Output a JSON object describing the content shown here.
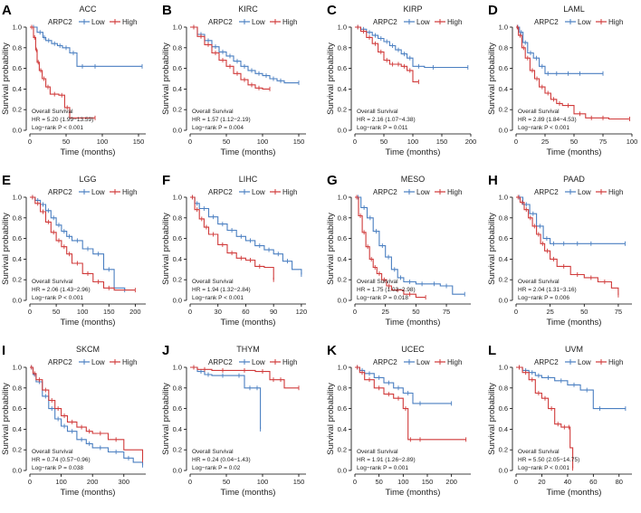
{
  "figure": {
    "ylabel": "Survival probability",
    "xlabel": "Time (months)",
    "legend_title": "ARPC2",
    "legend_low": "Low",
    "legend_high": "High",
    "stats_title": "Overall Survival",
    "low_color": "#4a7fc1",
    "high_color": "#d03a3a"
  },
  "chart_data": [
    {
      "type": "line",
      "letter": "A",
      "title": "ACC",
      "xlim": [
        0,
        160
      ],
      "xticks": [
        0,
        50,
        100,
        150
      ],
      "ylim": [
        0,
        1
      ],
      "yticks": [
        0,
        0.2,
        0.4,
        0.6,
        0.8,
        1.0
      ],
      "hr": "HR = 5.20 (1.99−13.59)",
      "pval": "Log−rank P < 0.001",
      "series": [
        {
          "name": "Low",
          "x": [
            0,
            10,
            18,
            22,
            30,
            38,
            45,
            55,
            65,
            80,
            100,
            155
          ],
          "y": [
            1.0,
            0.95,
            0.9,
            0.87,
            0.84,
            0.82,
            0.8,
            0.75,
            0.62,
            0.62,
            0.62,
            0.62
          ]
        },
        {
          "name": "High",
          "x": [
            0,
            5,
            8,
            10,
            13,
            17,
            22,
            28,
            40,
            48,
            55,
            90
          ],
          "y": [
            1.0,
            0.9,
            0.78,
            0.66,
            0.58,
            0.5,
            0.42,
            0.35,
            0.34,
            0.22,
            0.12,
            0.12
          ]
        }
      ]
    },
    {
      "type": "line",
      "letter": "B",
      "title": "KIRC",
      "xlim": [
        0,
        160
      ],
      "xticks": [
        0,
        50,
        100,
        150
      ],
      "ylim": [
        0,
        1
      ],
      "yticks": [
        0,
        0.2,
        0.4,
        0.6,
        0.8,
        1.0
      ],
      "hr": "HR = 1.57 (1.12−2.19)",
      "pval": "Log−rank P = 0.004",
      "series": [
        {
          "name": "Low",
          "x": [
            0,
            10,
            20,
            30,
            40,
            50,
            60,
            70,
            80,
            90,
            100,
            110,
            120,
            130,
            150
          ],
          "y": [
            1.0,
            0.93,
            0.87,
            0.81,
            0.76,
            0.72,
            0.67,
            0.62,
            0.58,
            0.55,
            0.53,
            0.5,
            0.48,
            0.46,
            0.46
          ]
        },
        {
          "name": "High",
          "x": [
            0,
            10,
            20,
            30,
            40,
            50,
            60,
            70,
            80,
            90,
            100,
            110
          ],
          "y": [
            1.0,
            0.91,
            0.83,
            0.75,
            0.68,
            0.62,
            0.55,
            0.49,
            0.44,
            0.41,
            0.4,
            0.4
          ]
        }
      ]
    },
    {
      "type": "line",
      "letter": "C",
      "title": "KIRP",
      "xlim": [
        0,
        200
      ],
      "xticks": [
        0,
        50,
        100,
        150,
        200
      ],
      "ylim": [
        0,
        1
      ],
      "yticks": [
        0,
        0.2,
        0.4,
        0.6,
        0.8,
        1.0
      ],
      "hr": "HR = 2.16 (1.07−4.38)",
      "pval": "Log−rank P = 0.011",
      "series": [
        {
          "name": "Low",
          "x": [
            0,
            10,
            20,
            30,
            40,
            50,
            60,
            70,
            80,
            90,
            100,
            120,
            150,
            195
          ],
          "y": [
            1.0,
            0.98,
            0.95,
            0.92,
            0.89,
            0.86,
            0.82,
            0.78,
            0.74,
            0.7,
            0.62,
            0.61,
            0.61,
            0.61
          ]
        },
        {
          "name": "High",
          "x": [
            0,
            10,
            20,
            30,
            40,
            50,
            60,
            70,
            80,
            90,
            100,
            110
          ],
          "y": [
            1.0,
            0.96,
            0.9,
            0.84,
            0.76,
            0.68,
            0.64,
            0.64,
            0.62,
            0.58,
            0.47,
            0.47
          ]
        }
      ]
    },
    {
      "type": "line",
      "letter": "D",
      "title": "LAML",
      "xlim": [
        0,
        100
      ],
      "xticks": [
        0,
        25,
        50,
        75,
        100
      ],
      "ylim": [
        0,
        1
      ],
      "yticks": [
        0,
        0.2,
        0.4,
        0.6,
        0.8,
        1.0
      ],
      "hr": "HR = 2.89 (1.84−4.53)",
      "pval": "Log−rank P < 0.001",
      "series": [
        {
          "name": "Low",
          "x": [
            0,
            3,
            6,
            10,
            15,
            20,
            25,
            30,
            40,
            50,
            60,
            75
          ],
          "y": [
            1.0,
            0.95,
            0.85,
            0.75,
            0.7,
            0.62,
            0.55,
            0.55,
            0.55,
            0.55,
            0.55,
            0.55
          ]
        },
        {
          "name": "High",
          "x": [
            0,
            2,
            5,
            8,
            12,
            16,
            20,
            25,
            30,
            35,
            40,
            50,
            60,
            70,
            80,
            98
          ],
          "y": [
            1.0,
            0.92,
            0.8,
            0.7,
            0.58,
            0.5,
            0.42,
            0.36,
            0.3,
            0.26,
            0.24,
            0.16,
            0.12,
            0.12,
            0.11,
            0.11
          ]
        }
      ]
    },
    {
      "type": "line",
      "letter": "E",
      "title": "LGG",
      "xlim": [
        0,
        220
      ],
      "xticks": [
        0,
        50,
        100,
        150,
        200
      ],
      "ylim": [
        0,
        1
      ],
      "yticks": [
        0,
        0.2,
        0.4,
        0.6,
        0.8,
        1.0
      ],
      "hr": "HR = 2.06 (1.43−2.96)",
      "pval": "Log−rank P < 0.001",
      "series": [
        {
          "name": "Low",
          "x": [
            0,
            10,
            20,
            30,
            40,
            50,
            60,
            70,
            80,
            100,
            120,
            140,
            160,
            180
          ],
          "y": [
            1.0,
            0.97,
            0.93,
            0.87,
            0.8,
            0.73,
            0.67,
            0.62,
            0.58,
            0.5,
            0.45,
            0.3,
            0.12,
            0.1
          ]
        },
        {
          "name": "High",
          "x": [
            0,
            10,
            20,
            30,
            40,
            50,
            60,
            70,
            80,
            100,
            120,
            140,
            160,
            200
          ],
          "y": [
            1.0,
            0.94,
            0.86,
            0.76,
            0.66,
            0.58,
            0.52,
            0.45,
            0.36,
            0.26,
            0.18,
            0.12,
            0.1,
            0.1
          ]
        }
      ]
    },
    {
      "type": "line",
      "letter": "F",
      "title": "LIHC",
      "xlim": [
        0,
        125
      ],
      "xticks": [
        0,
        30,
        60,
        90,
        120
      ],
      "ylim": [
        0,
        1
      ],
      "yticks": [
        0,
        0.2,
        0.4,
        0.6,
        0.8,
        1.0
      ],
      "hr": "HR = 1.94 (1.32−2.84)",
      "pval": "Log−rank P < 0.001",
      "series": [
        {
          "name": "Low",
          "x": [
            0,
            5,
            10,
            20,
            30,
            40,
            50,
            60,
            70,
            80,
            90,
            100,
            110,
            120
          ],
          "y": [
            1.0,
            0.94,
            0.89,
            0.81,
            0.74,
            0.68,
            0.62,
            0.58,
            0.53,
            0.49,
            0.45,
            0.38,
            0.3,
            0.25
          ]
        },
        {
          "name": "High",
          "x": [
            0,
            5,
            10,
            15,
            20,
            30,
            40,
            50,
            60,
            70,
            80,
            90
          ],
          "y": [
            1.0,
            0.88,
            0.79,
            0.71,
            0.64,
            0.54,
            0.46,
            0.41,
            0.39,
            0.33,
            0.32,
            0.2
          ]
        }
      ]
    },
    {
      "type": "line",
      "letter": "G",
      "title": "MESO",
      "xlim": [
        0,
        95
      ],
      "xticks": [
        0,
        25,
        50,
        75
      ],
      "ylim": [
        0,
        1
      ],
      "yticks": [
        0,
        0.2,
        0.4,
        0.6,
        0.8,
        1.0
      ],
      "hr": "HR = 1.75 (1.03−2.98)",
      "pval": "Log−rank P = 0.018",
      "series": [
        {
          "name": "Low",
          "x": [
            0,
            5,
            10,
            15,
            20,
            25,
            30,
            35,
            40,
            50,
            60,
            70,
            80,
            90
          ],
          "y": [
            1.0,
            0.9,
            0.8,
            0.67,
            0.53,
            0.42,
            0.3,
            0.22,
            0.18,
            0.16,
            0.16,
            0.14,
            0.06,
            0.06
          ]
        },
        {
          "name": "High",
          "x": [
            0,
            3,
            6,
            9,
            12,
            15,
            18,
            22,
            26,
            30,
            40,
            50,
            58
          ],
          "y": [
            1.0,
            0.82,
            0.66,
            0.52,
            0.4,
            0.32,
            0.26,
            0.2,
            0.14,
            0.1,
            0.06,
            0.03,
            0.03
          ]
        }
      ]
    },
    {
      "type": "line",
      "letter": "H",
      "title": "PAAD",
      "xlim": [
        0,
        85
      ],
      "xticks": [
        0,
        25,
        50,
        75
      ],
      "ylim": [
        0,
        1
      ],
      "yticks": [
        0,
        0.2,
        0.4,
        0.6,
        0.8,
        1.0
      ],
      "hr": "HR = 2.04 (1.31−3.16)",
      "pval": "Log−rank P = 0.006",
      "series": [
        {
          "name": "Low",
          "x": [
            0,
            5,
            10,
            15,
            20,
            25,
            30,
            40,
            50,
            60,
            80
          ],
          "y": [
            1.0,
            0.93,
            0.84,
            0.72,
            0.6,
            0.55,
            0.55,
            0.55,
            0.55,
            0.55,
            0.55
          ]
        },
        {
          "name": "High",
          "x": [
            0,
            3,
            6,
            9,
            12,
            15,
            18,
            21,
            25,
            30,
            40,
            50,
            60,
            70,
            75
          ],
          "y": [
            1.0,
            0.95,
            0.88,
            0.8,
            0.72,
            0.64,
            0.55,
            0.48,
            0.4,
            0.33,
            0.25,
            0.22,
            0.18,
            0.12,
            0.05
          ]
        }
      ]
    },
    {
      "type": "line",
      "letter": "I",
      "title": "SKCM",
      "xlim": [
        0,
        370
      ],
      "xticks": [
        0,
        100,
        200,
        300
      ],
      "ylim": [
        0,
        1
      ],
      "yticks": [
        0,
        0.2,
        0.4,
        0.6,
        0.8,
        1.0
      ],
      "hr": "HR = 0.74 (0.57−0.96)",
      "pval": "Log−rank P = 0.038",
      "series": [
        {
          "name": "Low",
          "x": [
            0,
            10,
            20,
            40,
            60,
            80,
            100,
            120,
            150,
            180,
            200,
            250,
            300,
            330,
            360
          ],
          "y": [
            1.0,
            0.93,
            0.86,
            0.72,
            0.6,
            0.5,
            0.43,
            0.38,
            0.3,
            0.26,
            0.22,
            0.18,
            0.12,
            0.08,
            0.05
          ]
        },
        {
          "name": "High",
          "x": [
            0,
            10,
            20,
            40,
            60,
            80,
            100,
            120,
            150,
            180,
            200,
            250,
            300,
            360
          ],
          "y": [
            1.0,
            0.94,
            0.88,
            0.78,
            0.68,
            0.6,
            0.53,
            0.47,
            0.42,
            0.38,
            0.36,
            0.3,
            0.2,
            0.1
          ]
        }
      ]
    },
    {
      "type": "line",
      "letter": "J",
      "title": "THYM",
      "xlim": [
        0,
        160
      ],
      "xticks": [
        0,
        50,
        100,
        150
      ],
      "ylim": [
        0,
        1
      ],
      "yticks": [
        0,
        0.2,
        0.4,
        0.6,
        0.8,
        1.0
      ],
      "hr": "HR = 0.24 (0.04−1.43)",
      "pval": "Log−rank P = 0.02",
      "series": [
        {
          "name": "Low",
          "x": [
            0,
            10,
            20,
            30,
            60,
            75,
            90,
            95,
            97
          ],
          "y": [
            1.0,
            0.96,
            0.93,
            0.92,
            0.92,
            0.8,
            0.8,
            0.8,
            0.4
          ]
        },
        {
          "name": "High",
          "x": [
            0,
            10,
            30,
            60,
            90,
            110,
            120,
            130,
            150
          ],
          "y": [
            1.0,
            0.98,
            0.97,
            0.97,
            0.96,
            0.88,
            0.88,
            0.8,
            0.8
          ]
        }
      ]
    },
    {
      "type": "line",
      "letter": "K",
      "title": "UCEC",
      "xlim": [
        0,
        240
      ],
      "xticks": [
        0,
        50,
        100,
        150,
        200
      ],
      "ylim": [
        0,
        1
      ],
      "yticks": [
        0,
        0.2,
        0.4,
        0.6,
        0.8,
        1.0
      ],
      "hr": "HR = 1.91 (1.26−2.89)",
      "pval": "Log−rank P = 0.001",
      "series": [
        {
          "name": "Low",
          "x": [
            0,
            10,
            20,
            40,
            60,
            80,
            100,
            120,
            150,
            200
          ],
          "y": [
            1.0,
            0.97,
            0.94,
            0.9,
            0.85,
            0.8,
            0.75,
            0.65,
            0.65,
            0.65
          ]
        },
        {
          "name": "High",
          "x": [
            0,
            10,
            20,
            40,
            60,
            80,
            100,
            110,
            120,
            150,
            230
          ],
          "y": [
            1.0,
            0.95,
            0.88,
            0.8,
            0.74,
            0.7,
            0.6,
            0.3,
            0.3,
            0.3,
            0.3
          ]
        }
      ]
    },
    {
      "type": "line",
      "letter": "L",
      "title": "UVM",
      "xlim": [
        0,
        90
      ],
      "xticks": [
        0,
        20,
        40,
        60,
        80
      ],
      "ylim": [
        0,
        1
      ],
      "yticks": [
        0,
        0.2,
        0.4,
        0.6,
        0.8,
        1.0
      ],
      "hr": "HR = 5.50 (2.05−14.75)",
      "pval": "Log−rank P < 0.001",
      "series": [
        {
          "name": "Low",
          "x": [
            0,
            5,
            10,
            15,
            20,
            30,
            40,
            50,
            60,
            70,
            85
          ],
          "y": [
            1.0,
            0.97,
            0.95,
            0.92,
            0.9,
            0.87,
            0.83,
            0.78,
            0.6,
            0.6,
            0.6
          ]
        },
        {
          "name": "High",
          "x": [
            0,
            5,
            10,
            15,
            20,
            25,
            30,
            35,
            40,
            42,
            44
          ],
          "y": [
            1.0,
            0.95,
            0.88,
            0.75,
            0.7,
            0.6,
            0.45,
            0.42,
            0.42,
            0.22,
            0.02
          ]
        }
      ]
    }
  ]
}
